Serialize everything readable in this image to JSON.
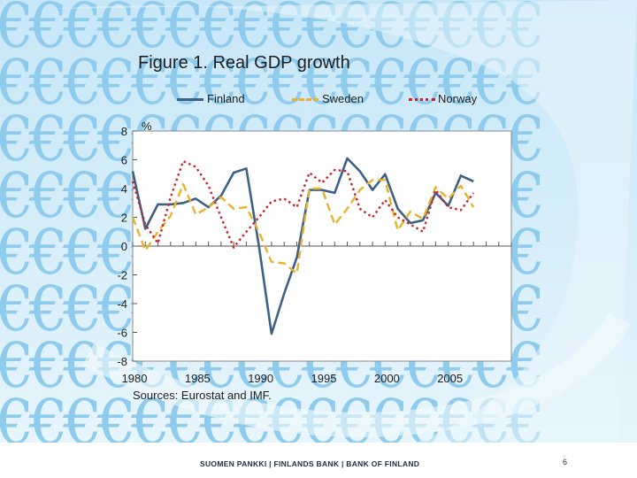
{
  "slide": {
    "title": "Figure 1. Real GDP growth",
    "source": "Sources: Eurostat and IMF.",
    "footer": "SUOMEN PANKKI | FINLANDS BANK | BANK OF FINLAND",
    "page_number": "6",
    "background_glyph": "€"
  },
  "colors": {
    "finland": "#3c6187",
    "sweden": "#e9b22c",
    "norway": "#c9242c",
    "plot_background": "#ffffff",
    "slide_background": "#c7e7f8",
    "euro_glyph": "#8fcbec"
  },
  "chart_data": {
    "type": "line",
    "title": "Figure 1. Real GDP growth",
    "ylabel": "%",
    "xlabel": "",
    "ylim": [
      -8,
      8
    ],
    "xlim": [
      1980,
      2010
    ],
    "yticks": [
      8,
      6,
      4,
      2,
      0,
      -2,
      -4,
      -6,
      -8
    ],
    "xticks": [
      1980,
      1985,
      1990,
      1995,
      2000,
      2005
    ],
    "grid": false,
    "legend_position": "top",
    "x": [
      1980,
      1981,
      1982,
      1983,
      1984,
      1985,
      1986,
      1987,
      1988,
      1989,
      1990,
      1991,
      1992,
      1993,
      1994,
      1995,
      1996,
      1997,
      1998,
      1999,
      2000,
      2001,
      2002,
      2003,
      2004,
      2005,
      2006,
      2007
    ],
    "series": [
      {
        "name": "Finland",
        "style": "solid",
        "values": [
          5.2,
          1.2,
          2.9,
          2.9,
          3.0,
          3.3,
          2.7,
          3.5,
          5.1,
          5.4,
          0.0,
          -6.1,
          -3.3,
          -0.8,
          3.9,
          3.9,
          3.7,
          6.1,
          5.2,
          3.9,
          5.0,
          2.6,
          1.6,
          1.8,
          3.7,
          2.8,
          4.9,
          4.5
        ]
      },
      {
        "name": "Sweden",
        "style": "dashed",
        "values": [
          2.0,
          -0.3,
          1.0,
          2.1,
          4.3,
          2.2,
          2.7,
          3.4,
          2.6,
          2.7,
          1.0,
          -1.1,
          -1.2,
          -1.9,
          4.0,
          4.0,
          1.5,
          2.6,
          3.9,
          4.6,
          4.6,
          1.1,
          2.4,
          1.9,
          4.1,
          3.3,
          4.2,
          2.7
        ]
      },
      {
        "name": "Norway",
        "style": "dotted",
        "values": [
          4.5,
          1.5,
          0.2,
          3.4,
          5.9,
          5.5,
          4.2,
          2.0,
          -0.1,
          1.0,
          2.0,
          3.1,
          3.3,
          2.7,
          5.1,
          4.4,
          5.3,
          5.2,
          2.6,
          2.0,
          3.2,
          2.0,
          1.5,
          1.0,
          3.9,
          2.7,
          2.5,
          3.7
        ]
      }
    ]
  }
}
